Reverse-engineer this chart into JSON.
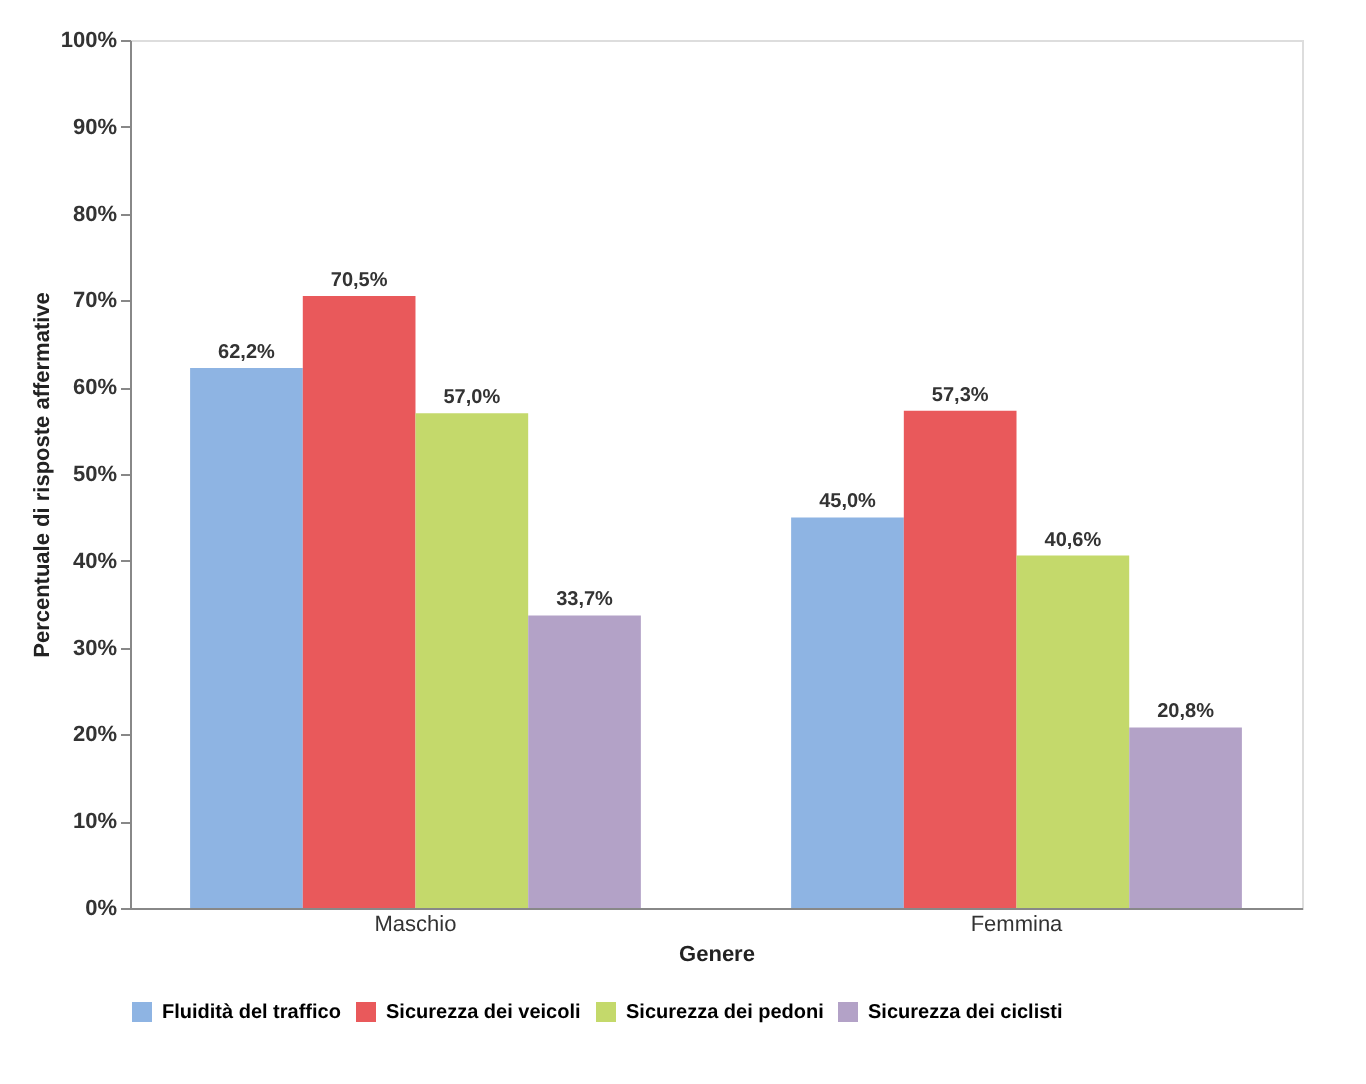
{
  "chart_data": {
    "type": "bar",
    "xlabel": "Genere",
    "ylabel": "Percentuale di risposte affermative",
    "categories": [
      "Maschio",
      "Femmina"
    ],
    "series": [
      {
        "name": "Fluidità del traffico",
        "color": "#8eb4e3",
        "values": [
          62.2,
          45.0
        ],
        "value_labels": [
          "62,2%",
          "45,0%"
        ]
      },
      {
        "name": "Sicurezza dei veicoli",
        "color": "#e9595b",
        "values": [
          70.5,
          57.3
        ],
        "value_labels": [
          "70,5%",
          "57,3%"
        ]
      },
      {
        "name": "Sicurezza dei pedoni",
        "color": "#c4d96b",
        "values": [
          57.0,
          40.6
        ],
        "value_labels": [
          "57,0%",
          "40,6%"
        ]
      },
      {
        "name": "Sicurezza dei ciclisti",
        "color": "#b3a2c7",
        "values": [
          33.7,
          20.8
        ],
        "value_labels": [
          "33,7%",
          "20,8%"
        ]
      }
    ],
    "ylim": [
      0,
      100
    ],
    "yticks": [
      {
        "value": 0,
        "label": "0%"
      },
      {
        "value": 10,
        "label": "10%"
      },
      {
        "value": 20,
        "label": "20%"
      },
      {
        "value": 30,
        "label": "30%"
      },
      {
        "value": 40,
        "label": "40%"
      },
      {
        "value": 50,
        "label": "50%"
      },
      {
        "value": 60,
        "label": "60%"
      },
      {
        "value": 70,
        "label": "70%"
      },
      {
        "value": 80,
        "label": "80%"
      },
      {
        "value": 90,
        "label": "90%"
      },
      {
        "value": 100,
        "label": "100%"
      }
    ],
    "grid": false,
    "legend": "bottom"
  }
}
